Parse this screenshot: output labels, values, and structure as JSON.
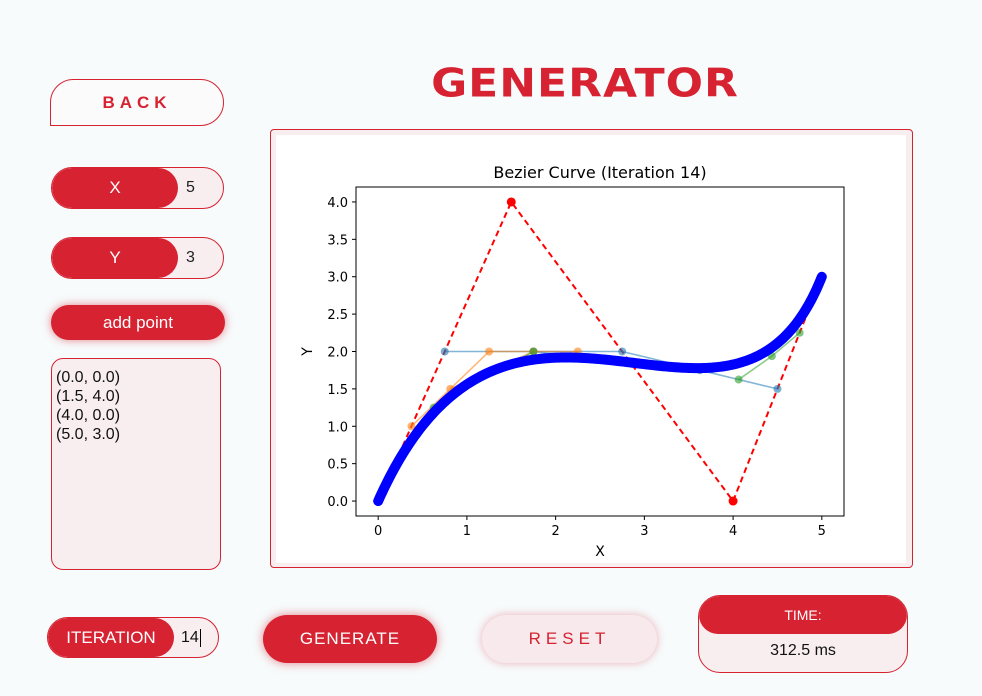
{
  "app": {
    "title": "GENERATOR",
    "back_label": "BACK"
  },
  "inputs": {
    "x_label": "X",
    "x_value": "5",
    "y_label": "Y",
    "y_value": "3",
    "add_label": "add point"
  },
  "points_list": [
    "(0.0, 0.0)",
    "(1.5, 4.0)",
    "(4.0, 0.0)",
    "(5.0, 3.0)"
  ],
  "iteration": {
    "label": "ITERATION",
    "value": "14"
  },
  "buttons": {
    "generate": "GENERATE",
    "reset": "RESET"
  },
  "time": {
    "label": "TIME:",
    "value": "312.5 ms"
  },
  "colors": {
    "accent": "#d62231",
    "panel": "#f8eef0",
    "curve": "#0000ff"
  },
  "chart_data": {
    "type": "line",
    "title": "Bezier Curve (Iteration 14)",
    "xlabel": "X",
    "ylabel": "Y",
    "xlim": [
      -0.25,
      5.25
    ],
    "ylim": [
      -0.2,
      4.2
    ],
    "xticks": [
      0,
      1,
      2,
      3,
      4,
      5
    ],
    "yticks": [
      0.0,
      0.5,
      1.0,
      1.5,
      2.0,
      2.5,
      3.0,
      3.5,
      4.0
    ],
    "control_points": [
      [
        0,
        0
      ],
      [
        1.5,
        4
      ],
      [
        4,
        0
      ],
      [
        5,
        3
      ]
    ],
    "series": [
      {
        "color": "#ff0000",
        "style": "dashed",
        "points": [
          [
            0,
            0
          ],
          [
            1.5,
            4
          ],
          [
            4,
            0
          ],
          [
            5,
            3
          ]
        ]
      },
      {
        "color": "#1f77b4",
        "points": [
          [
            0.75,
            2.0
          ],
          [
            2.75,
            2.0
          ],
          [
            4.5,
            1.5
          ]
        ]
      },
      {
        "color": "#1f77b4",
        "points": [
          [
            1.75,
            2.0
          ],
          [
            3.625,
            1.75
          ]
        ]
      },
      {
        "color": "#ff7f0e",
        "points": [
          [
            0.375,
            1.0
          ],
          [
            1.25,
            2.0
          ],
          [
            2.25,
            2.0
          ]
        ]
      },
      {
        "color": "#ff7f0e",
        "points": [
          [
            0.8125,
            1.5
          ],
          [
            1.75,
            2.0
          ]
        ]
      },
      {
        "color": "#2ca02c",
        "points": [
          [
            0.625,
            1.25
          ],
          [
            1.75,
            2.0
          ]
        ]
      },
      {
        "color": "#2ca02c",
        "points": [
          [
            4.0625,
            1.625
          ],
          [
            4.4375,
            1.9375
          ],
          [
            4.75,
            2.25
          ]
        ]
      }
    ],
    "curve": {
      "color": "#0000ff",
      "from_control_points": true
    }
  }
}
